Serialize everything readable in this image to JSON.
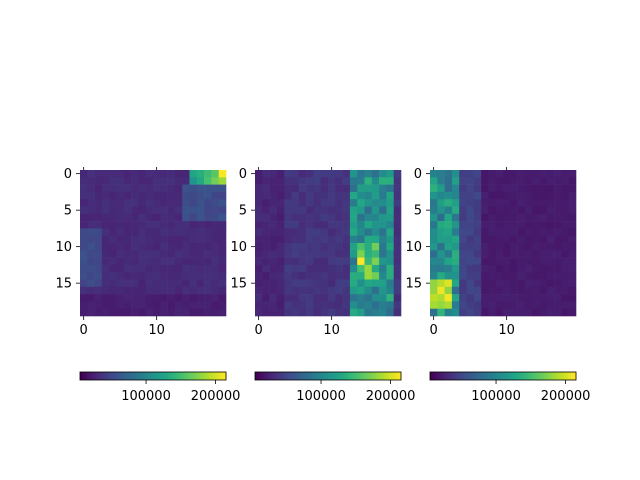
{
  "chart_data": [
    {
      "type": "heatmap",
      "rows": 20,
      "cols": 20,
      "pattern": "top-right-hot-corner",
      "x_ticks": [
        0,
        10
      ],
      "y_ticks": [
        0,
        5,
        10,
        15
      ],
      "colorbar": {
        "orientation": "horizontal",
        "range": [
          5000,
          215000
        ],
        "ticks": [
          "100000",
          "200000"
        ],
        "tick_values": [
          100000,
          200000
        ]
      }
    },
    {
      "type": "heatmap",
      "rows": 20,
      "cols": 20,
      "pattern": "vertical-band-right",
      "x_ticks": [
        0,
        10
      ],
      "y_ticks": [
        0,
        5,
        10,
        15
      ],
      "colorbar": {
        "orientation": "horizontal",
        "range": [
          5000,
          215000
        ],
        "ticks": [
          "100000",
          "200000"
        ],
        "tick_values": [
          100000,
          200000
        ]
      }
    },
    {
      "type": "heatmap",
      "rows": 20,
      "cols": 20,
      "pattern": "vertical-band-left",
      "x_ticks": [
        0,
        10
      ],
      "y_ticks": [
        0,
        5,
        10,
        15
      ],
      "colorbar": {
        "orientation": "horizontal",
        "range": [
          5000,
          215000
        ],
        "ticks": [
          "100000",
          "200000"
        ],
        "tick_values": [
          100000,
          200000
        ]
      }
    }
  ],
  "colormap": "viridis"
}
